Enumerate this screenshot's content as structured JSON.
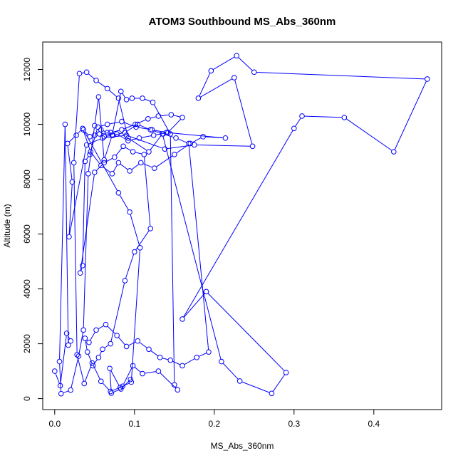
{
  "chart_data": {
    "type": "line",
    "title": "ATOM3 Southbound MS_Abs_360nm",
    "xlabel": "MS_Abs_360nm",
    "ylabel": "Altitude (m)",
    "xlim": [
      -0.015,
      0.485
    ],
    "ylim": [
      -400,
      13000
    ],
    "x_ticks": [
      "0.0",
      "0.1",
      "0.2",
      "0.3",
      "0.4"
    ],
    "x_tick_values": [
      0.0,
      0.1,
      0.2,
      0.3,
      0.4
    ],
    "y_ticks": [
      "0",
      "2000",
      "4000",
      "6000",
      "8000",
      "10000",
      "12000"
    ],
    "y_tick_values": [
      0,
      2000,
      4000,
      6000,
      8000,
      10000,
      12000
    ],
    "grid": false,
    "legend": "none",
    "series": [
      {
        "color": "#0000ff",
        "marker": "open-circle",
        "x": [
          0.0,
          0.007,
          0.015,
          0.02,
          0.017,
          0.013,
          0.006,
          0.008,
          0.02,
          0.03,
          0.036,
          0.042,
          0.05,
          0.055,
          0.062,
          0.072,
          0.083,
          0.09,
          0.097,
          0.11,
          0.123,
          0.145,
          0.15,
          0.154,
          0.13,
          0.11,
          0.098,
          0.085,
          0.07,
          0.058,
          0.047,
          0.037,
          0.028,
          0.024,
          0.031,
          0.04,
          0.052,
          0.066,
          0.08,
          0.092,
          0.118,
          0.135,
          0.209,
          0.232,
          0.272,
          0.29,
          0.19,
          0.16,
          0.3,
          0.31,
          0.363,
          0.425,
          0.467,
          0.25,
          0.228,
          0.196,
          0.18,
          0.225,
          0.248,
          0.175,
          0.138,
          0.09,
          0.06,
          0.04,
          0.018,
          0.022,
          0.016,
          0.027,
          0.035,
          0.045,
          0.058,
          0.072,
          0.08,
          0.094,
          0.108,
          0.125,
          0.15,
          0.17,
          0.186,
          0.214,
          0.14,
          0.122,
          0.102,
          0.084,
          0.066,
          0.054,
          0.044,
          0.038,
          0.035,
          0.032,
          0.05,
          0.062,
          0.075,
          0.086,
          0.098,
          0.112,
          0.12,
          0.1,
          0.088,
          0.07,
          0.06,
          0.055,
          0.048,
          0.041,
          0.038,
          0.043,
          0.052,
          0.064,
          0.078,
          0.09,
          0.104,
          0.118,
          0.132,
          0.145,
          0.16,
          0.178,
          0.193,
          0.168,
          0.152,
          0.136,
          0.12,
          0.104,
          0.088,
          0.073,
          0.062,
          0.056,
          0.07,
          0.084,
          0.101,
          0.117,
          0.13,
          0.146,
          0.16,
          0.142,
          0.124,
          0.106,
          0.092,
          0.078,
          0.066,
          0.058,
          0.05,
          0.044,
          0.036,
          0.08,
          0.094,
          0.107,
          0.096,
          0.082,
          0.069,
          0.071,
          0.083,
          0.095
        ],
        "y": [
          1000,
          470,
          2380,
          2100,
          1950,
          10000,
          1350,
          180,
          310,
          1550,
          2500,
          8200,
          9950,
          11000,
          8700,
          9600,
          11200,
          10900,
          10950,
          10950,
          10800,
          9650,
          500,
          320,
          1000,
          910,
          1200,
          450,
          260,
          630,
          1300,
          550,
          1600,
          8600,
          11850,
          11900,
          11600,
          11300,
          10950,
          9500,
          9000,
          9650,
          1350,
          640,
          190,
          950,
          3900,
          2900,
          9850,
          10300,
          10250,
          9000,
          11650,
          11900,
          12500,
          11950,
          10950,
          11700,
          9200,
          9250,
          9100,
          9600,
          9500,
          9250,
          5900,
          7900,
          9300,
          9600,
          9850,
          9000,
          8500,
          8200,
          8600,
          8300,
          8600,
          8400,
          8900,
          9300,
          9550,
          9500,
          9700,
          9800,
          9900,
          10100,
          10000,
          9900,
          8900,
          8650,
          4850,
          4580,
          8250,
          8600,
          8800,
          9200,
          9000,
          8900,
          6200,
          5350,
          4300,
          2000,
          1800,
          1500,
          1200,
          1700,
          2200,
          2050,
          2500,
          2700,
          2300,
          1900,
          2100,
          1800,
          1500,
          1400,
          1200,
          1500,
          1700,
          9300,
          9500,
          9650,
          9800,
          10000,
          9700,
          9600,
          9550,
          9650,
          9700,
          9800,
          10000,
          10200,
          10300,
          10350,
          10250,
          9700,
          9600,
          9500,
          9400,
          9650,
          9700,
          9800,
          9600,
          9550,
          9800,
          7500,
          6800,
          5500,
          600,
          400,
          1100,
          200,
          350,
          700
        ]
      }
    ]
  }
}
